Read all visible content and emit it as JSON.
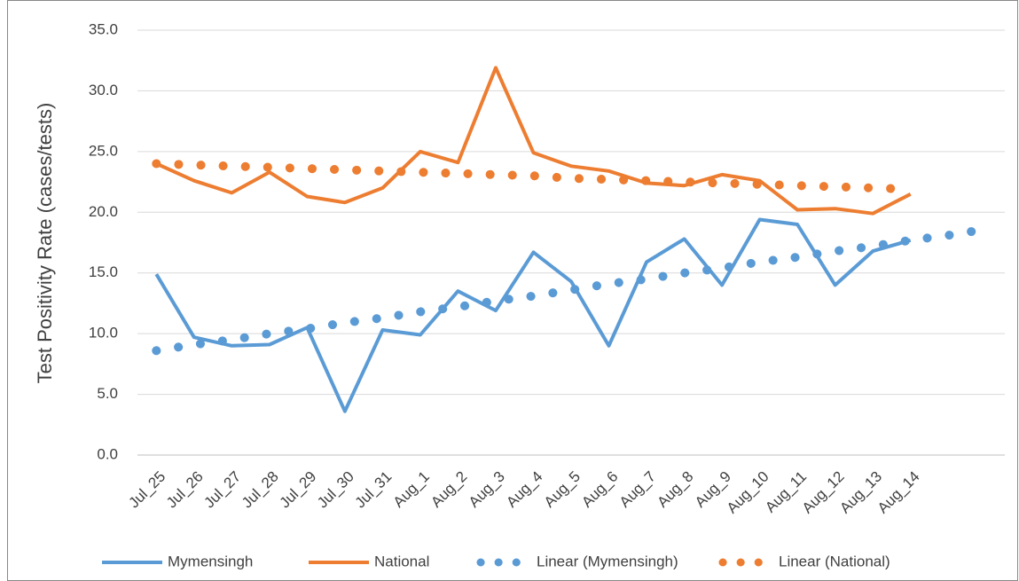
{
  "chart_data": {
    "type": "line",
    "y_label": "Test Positivity Rate (cases/tests)",
    "categories": [
      "Jul_25",
      "Jul_26",
      "Jul_27",
      "Jul_28",
      "Jul_29",
      "Jul_30",
      "Jul_31",
      "Aug_1",
      "Aug_2",
      "Aug_3",
      "Aug_4",
      "Aug_5",
      "Aug_6",
      "Aug_7",
      "Aug_8",
      "Aug_9",
      "Aug_10",
      "Aug_11",
      "Aug_12",
      "Aug_13",
      "Aug_14",
      null,
      null
    ],
    "series": [
      {
        "name": "Mymensingh",
        "color": "#5b9bd5",
        "style": "solid",
        "values": [
          14.9,
          9.7,
          9.0,
          9.1,
          10.5,
          3.6,
          10.3,
          9.9,
          13.5,
          11.9,
          16.7,
          14.3,
          9.0,
          15.9,
          17.8,
          14.0,
          19.4,
          19.0,
          14.0,
          16.8,
          17.7,
          null,
          null
        ]
      },
      {
        "name": "National",
        "color": "#ed7d31",
        "style": "solid",
        "values": [
          24.0,
          22.6,
          21.6,
          23.3,
          21.3,
          20.8,
          22.0,
          25.0,
          24.1,
          31.9,
          24.9,
          23.8,
          23.4,
          22.4,
          22.2,
          23.1,
          22.6,
          20.2,
          20.3,
          19.9,
          21.5,
          null,
          null
        ]
      },
      {
        "name": "Linear (Mymensingh)",
        "color": "#5b9bd5",
        "style": "dotted",
        "values": [
          8.6,
          9.1,
          9.5,
          10.0,
          10.4,
          10.9,
          11.3,
          11.8,
          12.2,
          12.7,
          13.1,
          13.6,
          14.1,
          14.5,
          15.0,
          15.4,
          15.9,
          16.3,
          16.8,
          17.2,
          17.7,
          18.1,
          18.6
        ]
      },
      {
        "name": "Linear (National)",
        "color": "#ed7d31",
        "style": "dotted",
        "values": [
          24.0,
          23.9,
          23.8,
          23.7,
          23.6,
          23.5,
          23.4,
          23.3,
          23.2,
          23.1,
          23.0,
          22.8,
          22.7,
          22.6,
          22.5,
          22.4,
          22.3,
          22.2,
          22.1,
          22.0,
          21.9,
          null,
          null
        ]
      }
    ],
    "ylim": [
      0,
      35
    ],
    "yticks": [
      {
        "value": 0,
        "label": "0.0"
      },
      {
        "value": 5,
        "label": "5.0"
      },
      {
        "value": 10,
        "label": "10.0"
      },
      {
        "value": 15,
        "label": "15.0"
      },
      {
        "value": 20,
        "label": "20.0"
      },
      {
        "value": 25,
        "label": "25.0"
      },
      {
        "value": 30,
        "label": "30.0"
      },
      {
        "value": 35,
        "label": "35.0"
      }
    ],
    "grid": true,
    "legend": "bottom"
  }
}
